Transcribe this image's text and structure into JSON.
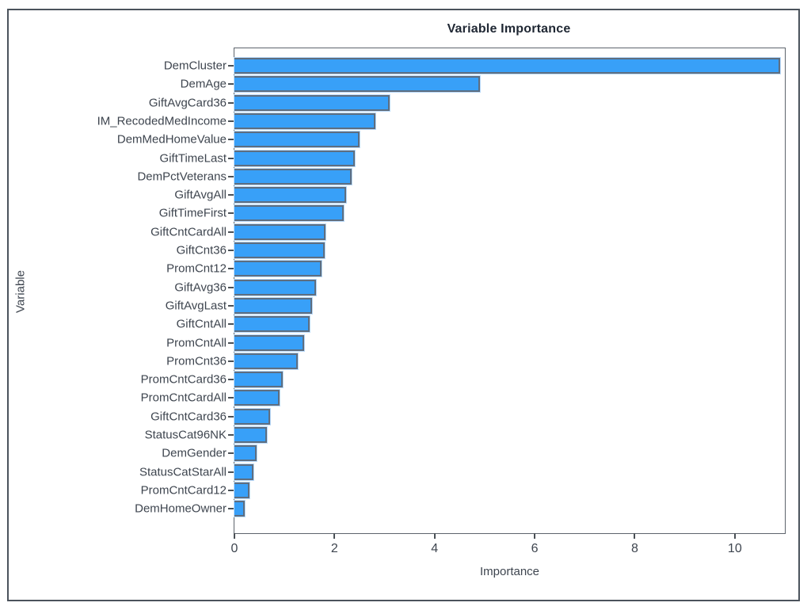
{
  "chart_data": {
    "type": "bar",
    "orientation": "horizontal",
    "title": "Variable Importance",
    "xlabel": "Importance",
    "ylabel": "Variable",
    "xlim": [
      0,
      11
    ],
    "xticks": [
      0,
      2,
      4,
      6,
      8,
      10
    ],
    "grid": false,
    "legend": "none",
    "sort_order": "descending",
    "bar_color": "#38a0f8",
    "bar_border_color": "#5e6e80",
    "frame_border_color": "#4b535c",
    "text_color": "#3e454f",
    "categories": [
      "DemCluster",
      "DemAge",
      "GiftAvgCard36",
      "IM_RecodedMedIncome",
      "DemMedHomeValue",
      "GiftTimeLast",
      "DemPctVeterans",
      "GiftAvgAll",
      "GiftTimeFirst",
      "GiftCntCardAll",
      "GiftCnt36",
      "PromCnt12",
      "GiftAvg36",
      "GiftAvgLast",
      "GiftCntAll",
      "PromCntAll",
      "PromCnt36",
      "PromCntCard36",
      "PromCntCardAll",
      "GiftCntCard36",
      "StatusCat96NK",
      "DemGender",
      "StatusCatStarAll",
      "PromCntCard12",
      "DemHomeOwner"
    ],
    "values": [
      10.9,
      4.9,
      3.11,
      2.81,
      2.5,
      2.4,
      2.34,
      2.23,
      2.18,
      1.82,
      1.8,
      1.74,
      1.63,
      1.55,
      1.5,
      1.39,
      1.26,
      0.96,
      0.9,
      0.71,
      0.65,
      0.44,
      0.38,
      0.3,
      0.21
    ]
  }
}
